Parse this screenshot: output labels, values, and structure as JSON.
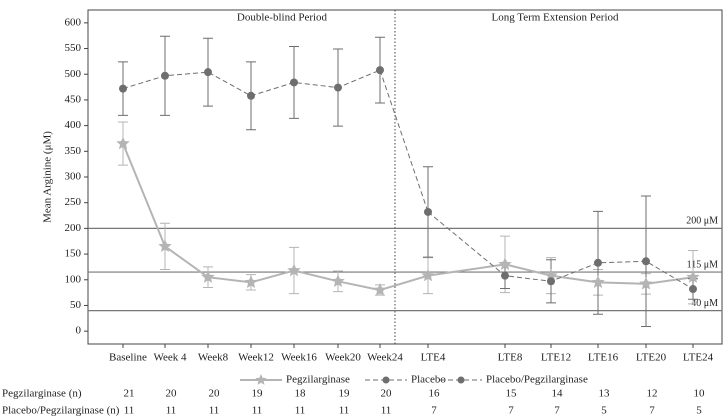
{
  "chart_data": {
    "type": "line",
    "y_label": "Mean Arginine (μM)",
    "categories": [
      "Baseline",
      "Week 4",
      "Week8",
      "Week12",
      "Week16",
      "Week20",
      "Week24",
      "LTE4",
      "LTE8",
      "LTE12",
      "LTE16",
      "LTE20",
      "LTE24"
    ],
    "ylim": [
      -25,
      625
    ],
    "yticks": [
      0,
      50,
      100,
      150,
      200,
      250,
      300,
      350,
      400,
      450,
      500,
      550,
      600
    ],
    "series": [
      {
        "name": "Pegzilarginase",
        "color": "#b4b4b4",
        "marker": "star",
        "dashed": false,
        "values": [
          365,
          165,
          105,
          95,
          118,
          97,
          80,
          108,
          130,
          108,
          95,
          92,
          105
        ],
        "errors": [
          42,
          45,
          20,
          15,
          45,
          20,
          10,
          35,
          55,
          35,
          25,
          20,
          52
        ]
      },
      {
        "name": "Placebo",
        "color": "#6e6e6e",
        "marker": "circle",
        "dashed": true,
        "values": [
          472,
          497,
          504,
          458,
          484,
          474,
          508,
          null,
          null,
          null,
          null,
          null,
          null
        ],
        "errors": [
          52,
          77,
          66,
          66,
          70,
          75,
          64,
          null,
          null,
          null,
          null,
          null,
          null
        ]
      },
      {
        "name": "Placebo/Pegzilarginase",
        "color": "#6e6e6e",
        "marker": "circle",
        "dashed": true,
        "values": [
          null,
          null,
          null,
          null,
          null,
          null,
          null,
          232,
          108,
          97,
          133,
          136,
          82
        ],
        "errors": [
          null,
          null,
          null,
          null,
          null,
          null,
          null,
          88,
          25,
          42,
          100,
          127,
          20
        ]
      }
    ],
    "reference_lines": [
      {
        "value": 200,
        "label": "200 μM"
      },
      {
        "value": 115,
        "label": "115 μM"
      },
      {
        "value": 40,
        "label": "40 μM"
      }
    ],
    "annotations": [
      "Double-blind Period",
      "Long Term Extension Period"
    ],
    "counts": [
      {
        "label": "Pegzilarginase (n)",
        "values": [
          21,
          20,
          20,
          19,
          18,
          19,
          20,
          16,
          15,
          14,
          13,
          12,
          10
        ]
      },
      {
        "label": "Placebo/Pegzilarginase (n)",
        "values": [
          11,
          11,
          11,
          11,
          11,
          11,
          11,
          7,
          7,
          7,
          5,
          7,
          5
        ]
      }
    ]
  }
}
